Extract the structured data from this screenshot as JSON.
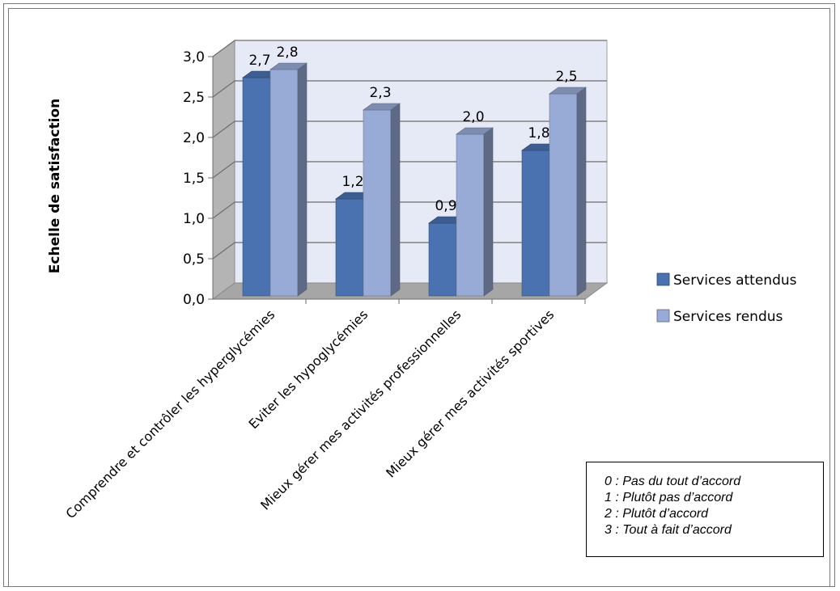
{
  "chart_data": {
    "type": "bar",
    "ylabel": "Echelle de satisfaction",
    "xlabel": "",
    "ylim": [
      0,
      3
    ],
    "y_ticks": [
      "0,0",
      "0,5",
      "1,0",
      "1,5",
      "2,0",
      "2,5",
      "3,0"
    ],
    "y_tick_values": [
      0,
      0.5,
      1,
      1.5,
      2,
      2.5,
      3
    ],
    "categories": [
      "Comprendre et contrôler les hyperglycémies",
      "Eviter les hypoglycémies",
      "Mieux gérer mes activités professionnelles",
      "Mieux gérer mes activités sportives"
    ],
    "series": [
      {
        "name": "Services attendus",
        "values": [
          2.7,
          1.2,
          0.9,
          1.8
        ],
        "labels": [
          "2,7",
          "1,2",
          "0,9",
          "1,8"
        ],
        "color": "#4a72b0"
      },
      {
        "name": "Services rendus",
        "values": [
          2.8,
          2.3,
          2.0,
          2.5
        ],
        "labels": [
          "2,8",
          "2,3",
          "2,0",
          "2,5"
        ],
        "color": "#98abd6"
      }
    ],
    "legend_position": "right",
    "grid": true,
    "style": "3d-column"
  },
  "scale_legend": [
    "0 : Pas du tout d’accord",
    "1 : Plutôt pas d’accord",
    "2 : Plutôt d’accord",
    "3 : Tout à fait d’accord"
  ],
  "colors": {
    "wall": "#e6eaf6",
    "side_wall": "#b4b4b4",
    "floor": "#a6a6a6",
    "grid": "#6e6e6e"
  }
}
